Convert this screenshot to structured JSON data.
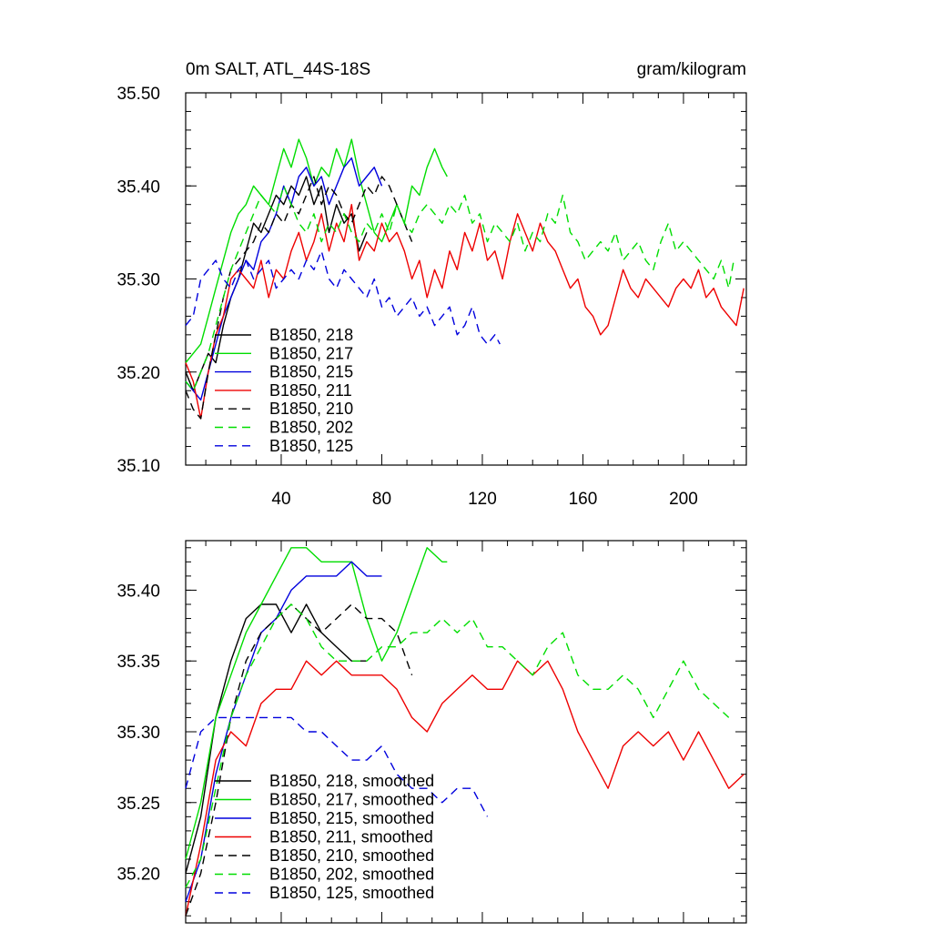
{
  "chart_data": [
    {
      "type": "line",
      "title": "0m SALT, ATL_44S-18S",
      "units": "gram/kilogram",
      "xlim": [
        2,
        225
      ],
      "ylim": [
        35.1,
        35.5
      ],
      "yticks": [
        "35.10",
        "35.20",
        "35.30",
        "35.40",
        "35.50"
      ],
      "xticks": [
        "40",
        "80",
        "120",
        "160",
        "200"
      ],
      "series": [
        {
          "name": "B1850, 218",
          "color": "#000000",
          "dash": "solid",
          "x": [
            2,
            5,
            8,
            11,
            14,
            17,
            20,
            23,
            26,
            29,
            32,
            35,
            38,
            41,
            44,
            47,
            50,
            53,
            56,
            59,
            62,
            65,
            68,
            71,
            74
          ],
          "y": [
            35.2,
            35.18,
            35.2,
            35.22,
            35.21,
            35.25,
            35.28,
            35.3,
            35.33,
            35.36,
            35.35,
            35.37,
            35.39,
            35.38,
            35.4,
            35.39,
            35.41,
            35.38,
            35.4,
            35.35,
            35.38,
            35.36,
            35.37,
            35.33,
            35.35
          ]
        },
        {
          "name": "B1850, 217",
          "color": "#00dd00",
          "dash": "solid",
          "x": [
            2,
            5,
            8,
            11,
            14,
            17,
            20,
            23,
            26,
            29,
            32,
            35,
            38,
            41,
            44,
            47,
            50,
            53,
            56,
            59,
            62,
            65,
            68,
            71,
            74,
            77,
            80,
            83,
            86,
            89,
            92,
            95,
            98,
            101,
            104,
            106
          ],
          "y": [
            35.21,
            35.22,
            35.23,
            35.26,
            35.29,
            35.32,
            35.35,
            35.37,
            35.38,
            35.4,
            35.39,
            35.38,
            35.41,
            35.44,
            35.42,
            35.45,
            35.43,
            35.4,
            35.42,
            35.41,
            35.44,
            35.42,
            35.45,
            35.41,
            35.38,
            35.35,
            35.34,
            35.36,
            35.38,
            35.36,
            35.4,
            35.39,
            35.42,
            35.44,
            35.42,
            35.41
          ]
        },
        {
          "name": "B1850, 215",
          "color": "#0000dd",
          "dash": "solid",
          "x": [
            2,
            5,
            8,
            11,
            14,
            17,
            20,
            23,
            26,
            29,
            32,
            35,
            38,
            41,
            44,
            47,
            50,
            53,
            56,
            59,
            62,
            65,
            68,
            71,
            74,
            77,
            80
          ],
          "y": [
            35.19,
            35.18,
            35.17,
            35.2,
            35.23,
            35.26,
            35.28,
            35.3,
            35.32,
            35.31,
            35.34,
            35.35,
            35.37,
            35.4,
            35.38,
            35.41,
            35.42,
            35.4,
            35.41,
            35.38,
            35.4,
            35.42,
            35.43,
            35.4,
            35.41,
            35.42,
            35.4
          ]
        },
        {
          "name": "B1850, 211",
          "color": "#ee0000",
          "dash": "solid",
          "x": [
            2,
            5,
            8,
            11,
            14,
            17,
            20,
            23,
            26,
            29,
            32,
            35,
            38,
            41,
            44,
            47,
            50,
            53,
            56,
            59,
            62,
            65,
            68,
            71,
            74,
            77,
            80,
            83,
            86,
            89,
            92,
            95,
            98,
            101,
            104,
            107,
            110,
            113,
            116,
            119,
            122,
            125,
            128,
            131,
            134,
            137,
            140,
            143,
            146,
            149,
            152,
            155,
            158,
            161,
            164,
            167,
            170,
            173,
            176,
            179,
            182,
            185,
            188,
            191,
            194,
            197,
            200,
            203,
            206,
            209,
            212,
            215,
            218,
            221,
            224
          ],
          "y": [
            35.21,
            35.19,
            35.15,
            35.2,
            35.24,
            35.26,
            35.3,
            35.31,
            35.3,
            35.29,
            35.32,
            35.28,
            35.31,
            35.3,
            35.33,
            35.35,
            35.32,
            35.34,
            35.37,
            35.33,
            35.36,
            35.34,
            35.38,
            35.32,
            35.34,
            35.33,
            35.36,
            35.34,
            35.35,
            35.33,
            35.3,
            35.32,
            35.28,
            35.31,
            35.29,
            35.33,
            35.31,
            35.35,
            35.33,
            35.36,
            35.32,
            35.33,
            35.3,
            35.34,
            35.37,
            35.35,
            35.33,
            35.36,
            35.34,
            35.33,
            35.31,
            35.29,
            35.3,
            35.27,
            35.26,
            35.24,
            35.25,
            35.28,
            35.31,
            35.29,
            35.28,
            35.3,
            35.29,
            35.28,
            35.27,
            35.29,
            35.3,
            35.29,
            35.31,
            35.28,
            35.29,
            35.27,
            35.26,
            35.25,
            35.29
          ]
        },
        {
          "name": "B1850, 210",
          "color": "#000000",
          "dash": "dash",
          "x": [
            2,
            5,
            8,
            11,
            14,
            17,
            20,
            23,
            26,
            29,
            32,
            35,
            38,
            41,
            44,
            47,
            50,
            53,
            56,
            59,
            62,
            65,
            68,
            71,
            74,
            77,
            80,
            83,
            86,
            89,
            92
          ],
          "y": [
            35.18,
            35.16,
            35.15,
            35.2,
            35.24,
            35.28,
            35.31,
            35.32,
            35.33,
            35.34,
            35.36,
            35.35,
            35.37,
            35.36,
            35.38,
            35.37,
            35.39,
            35.41,
            35.38,
            35.4,
            35.39,
            35.37,
            35.36,
            35.38,
            35.4,
            35.39,
            35.41,
            35.4,
            35.38,
            35.36,
            35.34
          ]
        },
        {
          "name": "B1850, 202",
          "color": "#00dd00",
          "dash": "dash",
          "x": [
            2,
            5,
            8,
            11,
            14,
            17,
            20,
            23,
            26,
            29,
            32,
            35,
            38,
            41,
            44,
            47,
            50,
            53,
            56,
            59,
            62,
            65,
            68,
            71,
            74,
            77,
            80,
            83,
            86,
            89,
            92,
            95,
            98,
            101,
            104,
            107,
            110,
            113,
            116,
            119,
            122,
            125,
            128,
            131,
            134,
            137,
            140,
            143,
            146,
            149,
            152,
            155,
            158,
            161,
            164,
            167,
            170,
            173,
            176,
            179,
            182,
            185,
            188,
            191,
            194,
            197,
            200,
            203,
            206,
            209,
            212,
            215,
            218,
            220
          ],
          "y": [
            35.19,
            35.18,
            35.2,
            35.22,
            35.25,
            35.28,
            35.31,
            35.33,
            35.35,
            35.37,
            35.39,
            35.38,
            35.37,
            35.4,
            35.38,
            35.36,
            35.35,
            35.37,
            35.34,
            35.36,
            35.35,
            35.37,
            35.35,
            35.34,
            35.36,
            35.35,
            35.37,
            35.35,
            35.38,
            35.36,
            35.35,
            35.37,
            35.38,
            35.37,
            35.36,
            35.38,
            35.37,
            35.39,
            35.36,
            35.37,
            35.34,
            35.36,
            35.35,
            35.34,
            35.36,
            35.33,
            35.35,
            35.34,
            35.37,
            35.36,
            35.39,
            35.35,
            35.34,
            35.32,
            35.33,
            35.34,
            35.33,
            35.35,
            35.32,
            35.33,
            35.34,
            35.32,
            35.31,
            35.34,
            35.36,
            35.33,
            35.34,
            35.33,
            35.32,
            35.31,
            35.3,
            35.32,
            35.29,
            35.32
          ]
        },
        {
          "name": "B1850, 125",
          "color": "#0000dd",
          "dash": "dash",
          "x": [
            2,
            5,
            8,
            11,
            14,
            17,
            20,
            23,
            26,
            29,
            32,
            35,
            38,
            41,
            44,
            47,
            50,
            53,
            56,
            59,
            62,
            65,
            68,
            71,
            74,
            77,
            80,
            83,
            86,
            89,
            92,
            95,
            98,
            101,
            104,
            107,
            110,
            113,
            116,
            119,
            122,
            125,
            127
          ],
          "y": [
            35.25,
            35.26,
            35.3,
            35.31,
            35.32,
            35.3,
            35.29,
            35.31,
            35.32,
            35.3,
            35.31,
            35.32,
            35.29,
            35.3,
            35.31,
            35.3,
            35.32,
            35.31,
            35.33,
            35.3,
            35.29,
            35.31,
            35.3,
            35.29,
            35.28,
            35.3,
            35.27,
            35.28,
            35.26,
            35.27,
            35.28,
            35.26,
            35.27,
            35.25,
            35.26,
            35.27,
            35.24,
            35.25,
            35.27,
            35.24,
            35.23,
            35.24,
            35.23
          ]
        }
      ]
    },
    {
      "type": "line",
      "xlim": [
        2,
        225
      ],
      "ylim": [
        35.165,
        35.435
      ],
      "yticks": [
        "35.20",
        "35.25",
        "35.30",
        "35.35",
        "35.40"
      ],
      "series": [
        {
          "name": "B1850, 218, smoothed",
          "color": "#000000",
          "dash": "solid",
          "x": [
            2,
            8,
            14,
            20,
            26,
            32,
            38,
            44,
            50,
            56,
            62,
            68,
            74
          ],
          "y": [
            35.2,
            35.24,
            35.31,
            35.35,
            35.38,
            35.39,
            35.39,
            35.37,
            35.39,
            35.37,
            35.36,
            35.35,
            35.35
          ]
        },
        {
          "name": "B1850, 217, smoothed",
          "color": "#00dd00",
          "dash": "solid",
          "x": [
            2,
            8,
            14,
            20,
            26,
            32,
            38,
            44,
            50,
            56,
            62,
            68,
            74,
            80,
            86,
            92,
            98,
            104,
            106
          ],
          "y": [
            35.21,
            35.25,
            35.31,
            35.34,
            35.37,
            35.39,
            35.41,
            35.43,
            35.43,
            35.42,
            35.42,
            35.42,
            35.38,
            35.35,
            35.37,
            35.4,
            35.43,
            35.42,
            35.42
          ]
        },
        {
          "name": "B1850, 215, smoothed",
          "color": "#0000dd",
          "dash": "solid",
          "x": [
            2,
            8,
            14,
            20,
            26,
            32,
            38,
            44,
            50,
            56,
            62,
            68,
            74,
            80
          ],
          "y": [
            35.18,
            35.21,
            35.27,
            35.31,
            35.34,
            35.37,
            35.38,
            35.4,
            35.41,
            35.41,
            35.41,
            35.42,
            35.41,
            35.41
          ]
        },
        {
          "name": "B1850, 211, smoothed",
          "color": "#ee0000",
          "dash": "solid",
          "x": [
            2,
            8,
            14,
            20,
            26,
            32,
            38,
            44,
            50,
            56,
            62,
            68,
            74,
            80,
            86,
            92,
            98,
            104,
            110,
            116,
            122,
            128,
            134,
            140,
            146,
            152,
            158,
            164,
            170,
            176,
            182,
            188,
            194,
            200,
            206,
            212,
            218,
            224
          ],
          "y": [
            35.17,
            35.22,
            35.28,
            35.3,
            35.29,
            35.32,
            35.33,
            35.33,
            35.35,
            35.34,
            35.35,
            35.34,
            35.34,
            35.34,
            35.33,
            35.31,
            35.3,
            35.32,
            35.33,
            35.34,
            35.33,
            35.33,
            35.35,
            35.34,
            35.35,
            35.33,
            35.3,
            35.28,
            35.26,
            35.29,
            35.3,
            35.29,
            35.3,
            35.28,
            35.3,
            35.28,
            35.26,
            35.27
          ]
        },
        {
          "name": "B1850, 210, smoothed",
          "color": "#000000",
          "dash": "dash",
          "x": [
            2,
            8,
            14,
            20,
            26,
            32,
            38,
            44,
            50,
            56,
            62,
            68,
            74,
            80,
            86,
            92
          ],
          "y": [
            35.17,
            35.2,
            35.25,
            35.31,
            35.35,
            35.37,
            35.38,
            35.39,
            35.38,
            35.37,
            35.38,
            35.39,
            35.38,
            35.38,
            35.37,
            35.34
          ]
        },
        {
          "name": "B1850, 202, smoothed",
          "color": "#00dd00",
          "dash": "dash",
          "x": [
            2,
            8,
            14,
            20,
            26,
            32,
            38,
            44,
            50,
            56,
            62,
            68,
            74,
            80,
            86,
            92,
            98,
            104,
            110,
            116,
            122,
            128,
            134,
            140,
            146,
            152,
            158,
            164,
            170,
            176,
            182,
            188,
            194,
            200,
            206,
            212,
            218
          ],
          "y": [
            35.19,
            35.21,
            35.26,
            35.31,
            35.34,
            35.36,
            35.38,
            35.39,
            35.38,
            35.36,
            35.35,
            35.35,
            35.35,
            35.36,
            35.36,
            35.37,
            35.37,
            35.38,
            35.37,
            35.38,
            35.36,
            35.36,
            35.35,
            35.34,
            35.36,
            35.37,
            35.34,
            35.33,
            35.33,
            35.34,
            35.33,
            35.31,
            35.33,
            35.35,
            35.33,
            35.32,
            35.31
          ]
        },
        {
          "name": "B1850, 125, smoothed",
          "color": "#0000dd",
          "dash": "dash",
          "x": [
            2,
            8,
            14,
            20,
            26,
            32,
            38,
            44,
            50,
            56,
            62,
            68,
            74,
            80,
            86,
            92,
            98,
            104,
            110,
            116,
            122
          ],
          "y": [
            35.26,
            35.3,
            35.31,
            35.31,
            35.31,
            35.31,
            35.31,
            35.31,
            35.3,
            35.3,
            35.29,
            35.28,
            35.28,
            35.29,
            35.27,
            35.26,
            35.26,
            35.25,
            35.26,
            35.26,
            35.24
          ]
        }
      ]
    }
  ]
}
